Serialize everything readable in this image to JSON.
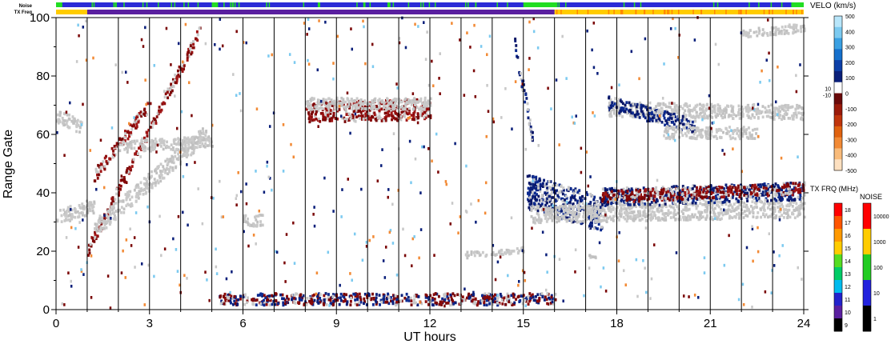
{
  "chart_data": {
    "type": "heatmap",
    "title": "",
    "xlabel": "UT hours",
    "ylabel": "Range Gate",
    "xlim": [
      0,
      24
    ],
    "ylim": [
      0,
      100
    ],
    "x_ticks": [
      "0",
      "3",
      "6",
      "9",
      "12",
      "15",
      "18",
      "21",
      "24"
    ],
    "y_ticks": [
      "0",
      "20",
      "40",
      "60",
      "80",
      "100"
    ],
    "hour_lines": [
      1,
      2,
      3,
      4,
      5,
      6,
      7,
      8,
      9,
      10,
      11,
      12,
      13,
      14,
      15,
      16,
      17,
      18,
      19,
      20,
      21,
      22,
      23
    ],
    "strips": {
      "noise_label": "Noise",
      "txfreq_label": "TX Freq",
      "noise_base_color": "#2b2bd6",
      "noise_green_segments": [
        [
          0,
          0.2
        ],
        [
          5.0,
          5.2
        ],
        [
          15.0,
          16.1
        ],
        [
          23.6,
          24
        ]
      ],
      "txfreq_purple_segments": [
        [
          1.0,
          16.0
        ]
      ],
      "txfreq_purple_color": "#5a1fa0",
      "txfreq_yellow_segments": [
        [
          0,
          1.0
        ],
        [
          16.0,
          24
        ]
      ],
      "txfreq_yellow_color": "#ffcc00"
    },
    "scatter_bands": [
      {
        "type": "gray",
        "t0": 0.0,
        "t1": 1.2,
        "y0": 31,
        "y1": 35,
        "width": 5
      },
      {
        "type": "gray",
        "t0": 0.0,
        "t1": 0.8,
        "y0": 66,
        "y1": 62,
        "width": 5
      },
      {
        "type": "red",
        "t0": 1.0,
        "t1": 4.6,
        "y0": 20,
        "y1": 95,
        "width": 4
      },
      {
        "type": "gray",
        "t0": 1.2,
        "t1": 4.8,
        "y0": 27,
        "y1": 60,
        "width": 6
      },
      {
        "type": "red",
        "t0": 1.2,
        "t1": 3.0,
        "y0": 45,
        "y1": 70,
        "width": 4
      },
      {
        "type": "gray",
        "t0": 2.0,
        "t1": 5.0,
        "y0": 55,
        "y1": 57,
        "width": 4
      },
      {
        "type": "red",
        "t0": 8.0,
        "t1": 12.0,
        "y0": 67,
        "y1": 68,
        "width": 7
      },
      {
        "type": "gray",
        "t0": 8.0,
        "t1": 12.0,
        "y0": 70,
        "y1": 70,
        "width": 4
      },
      {
        "type": "blue",
        "t0": 14.7,
        "t1": 15.3,
        "y0": 90,
        "y1": 57,
        "width": 5
      },
      {
        "type": "blue",
        "t0": 15.1,
        "t1": 17.5,
        "y0": 40,
        "y1": 32,
        "width": 12
      },
      {
        "type": "gray",
        "t0": 15.2,
        "t1": 24.0,
        "y0": 32,
        "y1": 34,
        "width": 6
      },
      {
        "type": "blue",
        "t0": 17.5,
        "t1": 24.0,
        "y0": 38,
        "y1": 40,
        "width": 6
      },
      {
        "type": "red",
        "t0": 17.5,
        "t1": 24.0,
        "y0": 38,
        "y1": 41,
        "width": 4
      },
      {
        "type": "gray",
        "t0": 17.7,
        "t1": 24.0,
        "y0": 68,
        "y1": 67,
        "width": 5
      },
      {
        "type": "blue",
        "t0": 17.7,
        "t1": 20.5,
        "y0": 70,
        "y1": 62,
        "width": 5
      },
      {
        "type": "gray",
        "t0": 19.5,
        "t1": 22.5,
        "y0": 60,
        "y1": 60,
        "width": 4
      },
      {
        "type": "gray",
        "t0": 22.0,
        "t1": 24.0,
        "y0": 94,
        "y1": 96,
        "width": 3
      },
      {
        "type": "gray",
        "t0": 13.0,
        "t1": 15.0,
        "y0": 18,
        "y1": 20,
        "width": 2
      },
      {
        "type": "gray",
        "t0": 6.0,
        "t1": 6.6,
        "y0": 30,
        "y1": 30,
        "width": 4
      },
      {
        "type": "mixed_ground",
        "t0": 5.2,
        "t1": 16.0,
        "y0": 3,
        "y1": 3,
        "width": 4
      },
      {
        "type": "gray",
        "t0": 17.0,
        "t1": 17.3,
        "y0": 18,
        "y1": 18,
        "width": 2
      }
    ],
    "colorbar_velocity": {
      "title": "VELO (km/s)",
      "ticks": [
        "500",
        "400",
        "300",
        "200",
        "100",
        "0",
        "-100",
        "-200",
        "-300",
        "-400",
        "-500"
      ],
      "extra_ticks": [
        "10",
        "-10"
      ],
      "colors_top_to_bottom": [
        "#b8e6fa",
        "#7ccaf0",
        "#3aa0e2",
        "#1570cc",
        "#0c3fa8",
        "#0a1f7a",
        "#ffffff",
        "#6a0a0a",
        "#9a1a0a",
        "#c0350c",
        "#e0620f",
        "#f28a35",
        "#f9bb7a",
        "#fde0c0"
      ]
    },
    "colorbar_txfreq": {
      "title": "TX FRQ (MHz)",
      "ticks": [
        "18",
        "17",
        "16",
        "15",
        "14",
        "13",
        "12",
        "11",
        "10",
        "9"
      ],
      "colors_top_to_bottom": [
        "#ff0000",
        "#ff5500",
        "#ff9900",
        "#ffcc00",
        "#55dd22",
        "#00cc66",
        "#00bbee",
        "#2222cc",
        "#5a1fa0",
        "#000000"
      ]
    },
    "colorbar_noise": {
      "title": "NOISE",
      "ticks": [
        "10000",
        "1000",
        "100",
        "10",
        "1"
      ],
      "colors_top_to_bottom": [
        "#ff0000",
        "#ffcc00",
        "#22cc22",
        "#2222dd",
        "#000000"
      ]
    }
  }
}
